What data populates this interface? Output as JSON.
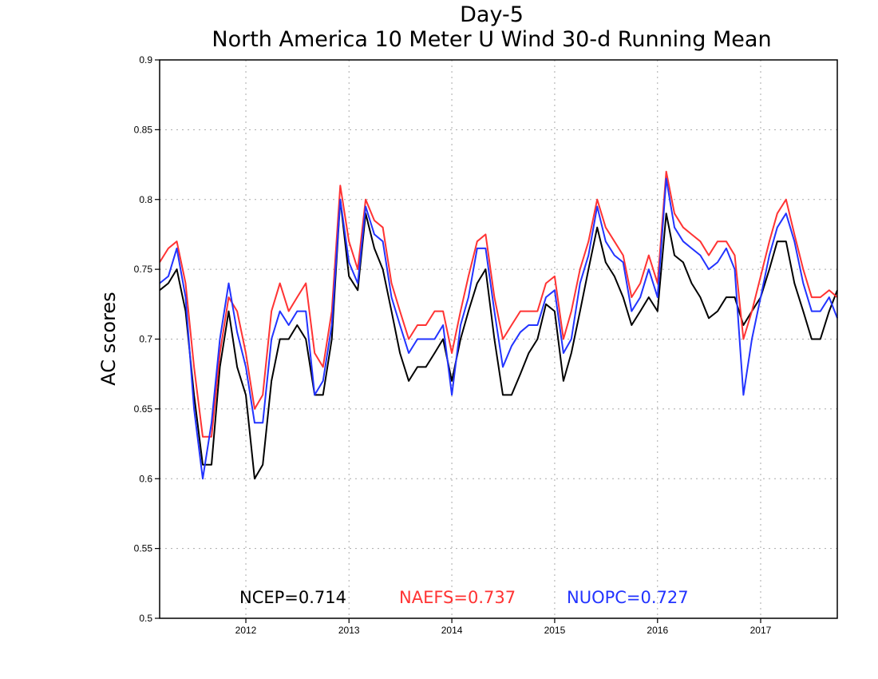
{
  "chart_data": {
    "type": "line",
    "title": "Day-5",
    "subtitle": "North America 10 Meter U Wind 30-d Running Mean",
    "xlabel": "",
    "ylabel": "AC scores",
    "xlim": [
      "2011-03-01",
      "2017-09-30"
    ],
    "ylim": [
      0.5,
      0.9
    ],
    "x_ticks": [
      "2012",
      "2013",
      "2014",
      "2015",
      "2016",
      "2017"
    ],
    "y_ticks": [
      "0.5",
      "0.55",
      "0.6",
      "0.65",
      "0.7",
      "0.75",
      "0.8",
      "0.85",
      "0.9"
    ],
    "grid": true,
    "legend": "bottom, inside plot",
    "series": [
      {
        "name": "NCEP",
        "label": "NCEP=0.714",
        "color": "#000000",
        "x": [
          "2011-03-01",
          "2011-04-01",
          "2011-05-01",
          "2011-06-01",
          "2011-07-01",
          "2011-08-01",
          "2011-09-01",
          "2011-10-01",
          "2011-11-01",
          "2011-12-01",
          "2012-01-01",
          "2012-02-01",
          "2012-03-01",
          "2012-04-01",
          "2012-05-01",
          "2012-06-01",
          "2012-07-01",
          "2012-08-01",
          "2012-09-01",
          "2012-10-01",
          "2012-11-01",
          "2012-12-01",
          "2013-01-01",
          "2013-02-01",
          "2013-03-01",
          "2013-04-01",
          "2013-05-01",
          "2013-06-01",
          "2013-07-01",
          "2013-08-01",
          "2013-09-01",
          "2013-10-01",
          "2013-11-01",
          "2013-12-01",
          "2014-01-01",
          "2014-02-01",
          "2014-03-01",
          "2014-04-01",
          "2014-05-01",
          "2014-06-01",
          "2014-07-01",
          "2014-08-01",
          "2014-09-01",
          "2014-10-01",
          "2014-11-01",
          "2014-12-01",
          "2015-01-01",
          "2015-02-01",
          "2015-03-01",
          "2015-04-01",
          "2015-05-01",
          "2015-06-01",
          "2015-07-01",
          "2015-08-01",
          "2015-09-01",
          "2015-10-01",
          "2015-11-01",
          "2015-12-01",
          "2016-01-01",
          "2016-02-01",
          "2016-03-01",
          "2016-04-01",
          "2016-05-01",
          "2016-06-01",
          "2016-07-01",
          "2016-08-01",
          "2016-09-01",
          "2016-10-01",
          "2016-11-01",
          "2016-12-01",
          "2017-01-01",
          "2017-02-01",
          "2017-03-01",
          "2017-04-01",
          "2017-05-01",
          "2017-06-01",
          "2017-07-01",
          "2017-08-01",
          "2017-09-01",
          "2017-09-30"
        ],
        "values": [
          0.735,
          0.74,
          0.75,
          0.72,
          0.66,
          0.61,
          0.61,
          0.68,
          0.72,
          0.68,
          0.66,
          0.6,
          0.61,
          0.67,
          0.7,
          0.7,
          0.71,
          0.7,
          0.66,
          0.66,
          0.7,
          0.8,
          0.745,
          0.735,
          0.79,
          0.765,
          0.75,
          0.72,
          0.69,
          0.67,
          0.68,
          0.68,
          0.69,
          0.7,
          0.67,
          0.7,
          0.72,
          0.74,
          0.75,
          0.7,
          0.66,
          0.66,
          0.675,
          0.69,
          0.7,
          0.725,
          0.72,
          0.67,
          0.69,
          0.72,
          0.75,
          0.78,
          0.755,
          0.745,
          0.73,
          0.71,
          0.72,
          0.73,
          0.72,
          0.79,
          0.76,
          0.755,
          0.74,
          0.73,
          0.715,
          0.72,
          0.73,
          0.73,
          0.71,
          0.72,
          0.73,
          0.75,
          0.77,
          0.77,
          0.74,
          0.72,
          0.7,
          0.7,
          0.72,
          0.735
        ]
      },
      {
        "name": "NAEFS",
        "label": "NAEFS=0.737",
        "color": "#ff3333",
        "x": [
          "2011-03-01",
          "2011-04-01",
          "2011-05-01",
          "2011-06-01",
          "2011-07-01",
          "2011-08-01",
          "2011-09-01",
          "2011-10-01",
          "2011-11-01",
          "2011-12-01",
          "2012-01-01",
          "2012-02-01",
          "2012-03-01",
          "2012-04-01",
          "2012-05-01",
          "2012-06-01",
          "2012-07-01",
          "2012-08-01",
          "2012-09-01",
          "2012-10-01",
          "2012-11-01",
          "2012-12-01",
          "2013-01-01",
          "2013-02-01",
          "2013-03-01",
          "2013-04-01",
          "2013-05-01",
          "2013-06-01",
          "2013-07-01",
          "2013-08-01",
          "2013-09-01",
          "2013-10-01",
          "2013-11-01",
          "2013-12-01",
          "2014-01-01",
          "2014-02-01",
          "2014-03-01",
          "2014-04-01",
          "2014-05-01",
          "2014-06-01",
          "2014-07-01",
          "2014-08-01",
          "2014-09-01",
          "2014-10-01",
          "2014-11-01",
          "2014-12-01",
          "2015-01-01",
          "2015-02-01",
          "2015-03-01",
          "2015-04-01",
          "2015-05-01",
          "2015-06-01",
          "2015-07-01",
          "2015-08-01",
          "2015-09-01",
          "2015-10-01",
          "2015-11-01",
          "2015-12-01",
          "2016-01-01",
          "2016-02-01",
          "2016-03-01",
          "2016-04-01",
          "2016-05-01",
          "2016-06-01",
          "2016-07-01",
          "2016-08-01",
          "2016-09-01",
          "2016-10-01",
          "2016-11-01",
          "2016-12-01",
          "2017-01-01",
          "2017-02-01",
          "2017-03-01",
          "2017-04-01",
          "2017-05-01",
          "2017-06-01",
          "2017-07-01",
          "2017-08-01",
          "2017-09-01",
          "2017-09-30"
        ],
        "values": [
          0.755,
          0.765,
          0.77,
          0.74,
          0.68,
          0.63,
          0.63,
          0.69,
          0.73,
          0.72,
          0.69,
          0.65,
          0.66,
          0.72,
          0.74,
          0.72,
          0.73,
          0.74,
          0.69,
          0.68,
          0.72,
          0.81,
          0.77,
          0.75,
          0.8,
          0.785,
          0.78,
          0.74,
          0.72,
          0.7,
          0.71,
          0.71,
          0.72,
          0.72,
          0.69,
          0.72,
          0.745,
          0.77,
          0.775,
          0.73,
          0.7,
          0.71,
          0.72,
          0.72,
          0.72,
          0.74,
          0.745,
          0.7,
          0.72,
          0.75,
          0.77,
          0.8,
          0.78,
          0.77,
          0.76,
          0.73,
          0.74,
          0.76,
          0.74,
          0.82,
          0.79,
          0.78,
          0.775,
          0.77,
          0.76,
          0.77,
          0.77,
          0.76,
          0.7,
          0.72,
          0.745,
          0.77,
          0.79,
          0.8,
          0.775,
          0.75,
          0.73,
          0.73,
          0.735,
          0.73
        ]
      },
      {
        "name": "NUOPC",
        "label": "NUOPC=0.727",
        "color": "#2233ff",
        "x": [
          "2011-03-01",
          "2011-04-01",
          "2011-05-01",
          "2011-06-01",
          "2011-07-01",
          "2011-08-01",
          "2011-09-01",
          "2011-10-01",
          "2011-11-01",
          "2011-12-01",
          "2012-01-01",
          "2012-02-01",
          "2012-03-01",
          "2012-04-01",
          "2012-05-01",
          "2012-06-01",
          "2012-07-01",
          "2012-08-01",
          "2012-09-01",
          "2012-10-01",
          "2012-11-01",
          "2012-12-01",
          "2013-01-01",
          "2013-02-01",
          "2013-03-01",
          "2013-04-01",
          "2013-05-01",
          "2013-06-01",
          "2013-07-01",
          "2013-08-01",
          "2013-09-01",
          "2013-10-01",
          "2013-11-01",
          "2013-12-01",
          "2014-01-01",
          "2014-02-01",
          "2014-03-01",
          "2014-04-01",
          "2014-05-01",
          "2014-06-01",
          "2014-07-01",
          "2014-08-01",
          "2014-09-01",
          "2014-10-01",
          "2014-11-01",
          "2014-12-01",
          "2015-01-01",
          "2015-02-01",
          "2015-03-01",
          "2015-04-01",
          "2015-05-01",
          "2015-06-01",
          "2015-07-01",
          "2015-08-01",
          "2015-09-01",
          "2015-10-01",
          "2015-11-01",
          "2015-12-01",
          "2016-01-01",
          "2016-02-01",
          "2016-03-01",
          "2016-04-01",
          "2016-05-01",
          "2016-06-01",
          "2016-07-01",
          "2016-08-01",
          "2016-09-01",
          "2016-10-01",
          "2016-11-01",
          "2016-12-01",
          "2017-01-01",
          "2017-02-01",
          "2017-03-01",
          "2017-04-01",
          "2017-05-01",
          "2017-06-01",
          "2017-07-01",
          "2017-08-01",
          "2017-09-01",
          "2017-09-30"
        ],
        "values": [
          0.74,
          0.745,
          0.765,
          0.73,
          0.65,
          0.6,
          0.64,
          0.7,
          0.74,
          0.705,
          0.68,
          0.64,
          0.64,
          0.7,
          0.72,
          0.71,
          0.72,
          0.72,
          0.66,
          0.67,
          0.71,
          0.8,
          0.755,
          0.74,
          0.795,
          0.775,
          0.77,
          0.73,
          0.71,
          0.69,
          0.7,
          0.7,
          0.7,
          0.71,
          0.66,
          0.71,
          0.73,
          0.765,
          0.765,
          0.72,
          0.68,
          0.695,
          0.705,
          0.71,
          0.71,
          0.73,
          0.735,
          0.69,
          0.7,
          0.74,
          0.76,
          0.795,
          0.77,
          0.76,
          0.755,
          0.72,
          0.73,
          0.75,
          0.73,
          0.815,
          0.78,
          0.77,
          0.765,
          0.76,
          0.75,
          0.755,
          0.765,
          0.75,
          0.66,
          0.7,
          0.73,
          0.76,
          0.78,
          0.79,
          0.77,
          0.74,
          0.72,
          0.72,
          0.73,
          0.715
        ]
      }
    ]
  }
}
